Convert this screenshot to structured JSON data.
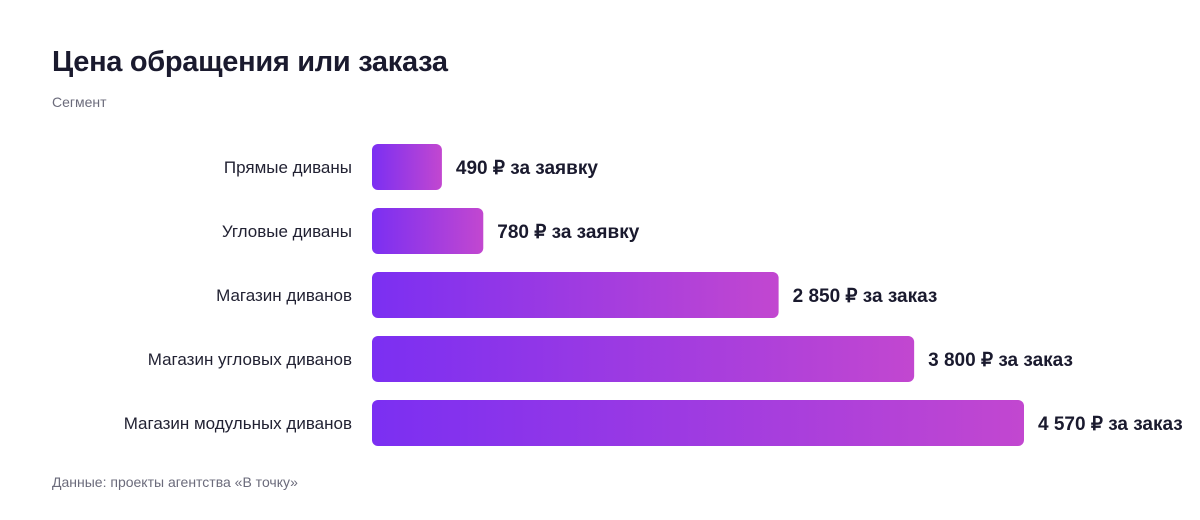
{
  "header": {
    "title": "Цена обращения или заказа",
    "subtitle": "Сегмент"
  },
  "footer": {
    "source": "Данные: проекты агентства «В точку»"
  },
  "colors": {
    "bar_start": "#7b2ff2",
    "bar_end": "#c247d0",
    "text_dark": "#1a1a2e",
    "text_muted": "#6b6b7b"
  },
  "chart_data": {
    "type": "bar",
    "orientation": "horizontal",
    "title": "Цена обращения или заказа",
    "ylabel": "Сегмент",
    "categories": [
      "Прямые диваны",
      "Угловые диваны",
      "Магазин диванов",
      "Магазин угловых диванов",
      "Магазин модульных диванов"
    ],
    "values": [
      490,
      780,
      2850,
      3800,
      4570
    ],
    "data_labels": [
      "490 ₽ за заявку",
      "780 ₽ за заявку",
      "2 850 ₽ за заказ",
      "3 800 ₽ за заказ",
      "4 570 ₽ за заказ"
    ],
    "xlim": [
      0,
      4570
    ],
    "grid": false,
    "legend": "none"
  }
}
